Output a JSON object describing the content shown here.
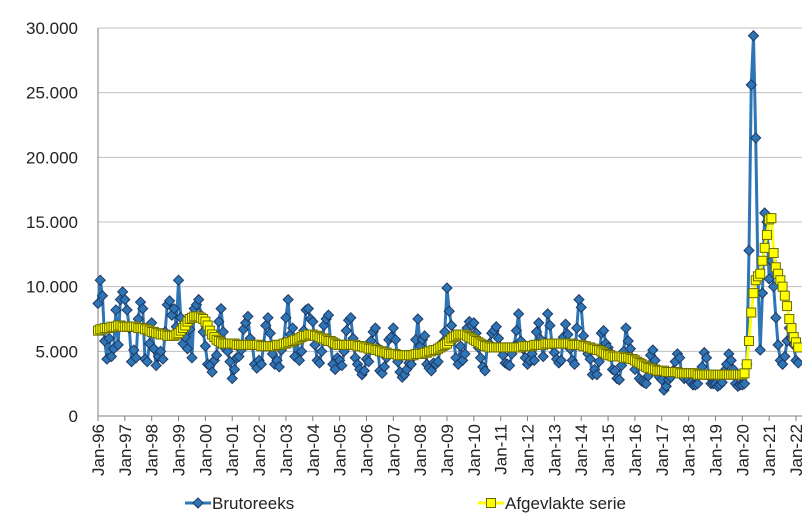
{
  "chart_data": {
    "type": "line",
    "categories": [
      "Jan-96",
      null,
      null,
      null,
      null,
      null,
      null,
      null,
      null,
      null,
      null,
      null,
      "Jan-97",
      null,
      null,
      null,
      null,
      null,
      null,
      null,
      null,
      null,
      null,
      null,
      "Jan-98",
      null,
      null,
      null,
      null,
      null,
      null,
      null,
      null,
      null,
      null,
      null,
      "Jan-99",
      null,
      null,
      null,
      null,
      null,
      null,
      null,
      null,
      null,
      null,
      null,
      "Jan-00",
      null,
      null,
      null,
      null,
      null,
      null,
      null,
      null,
      null,
      null,
      null,
      "Jan-01",
      null,
      null,
      null,
      null,
      null,
      null,
      null,
      null,
      null,
      null,
      null,
      "Jan-02",
      null,
      null,
      null,
      null,
      null,
      null,
      null,
      null,
      null,
      null,
      null,
      "Jan-03",
      null,
      null,
      null,
      null,
      null,
      null,
      null,
      null,
      null,
      null,
      null,
      "Jan-04",
      null,
      null,
      null,
      null,
      null,
      null,
      null,
      null,
      null,
      null,
      null,
      "Jan-05",
      null,
      null,
      null,
      null,
      null,
      null,
      null,
      null,
      null,
      null,
      null,
      "Jan-06",
      null,
      null,
      null,
      null,
      null,
      null,
      null,
      null,
      null,
      null,
      null,
      "Jan-07",
      null,
      null,
      null,
      null,
      null,
      null,
      null,
      null,
      null,
      null,
      null,
      "Jan-08",
      null,
      null,
      null,
      null,
      null,
      null,
      null,
      null,
      null,
      null,
      null,
      "Jan-09",
      null,
      null,
      null,
      null,
      null,
      null,
      null,
      null,
      null,
      null,
      null,
      "Jan-10",
      null,
      null,
      null,
      null,
      null,
      null,
      null,
      null,
      null,
      null,
      null,
      "Jan-11",
      null,
      null,
      null,
      null,
      null,
      null,
      null,
      null,
      null,
      null,
      null,
      "Jan-12",
      null,
      null,
      null,
      null,
      null,
      null,
      null,
      null,
      null,
      null,
      null,
      "Jan-13",
      null,
      null,
      null,
      null,
      null,
      null,
      null,
      null,
      null,
      null,
      null,
      "Jan-14",
      null,
      null,
      null,
      null,
      null,
      null,
      null,
      null,
      null,
      null,
      null,
      "Jan-15",
      null,
      null,
      null,
      null,
      null,
      null,
      null,
      null,
      null,
      null,
      null,
      "Jan-16",
      null,
      null,
      null,
      null,
      null,
      null,
      null,
      null,
      null,
      null,
      null,
      "Jan-17",
      null,
      null,
      null,
      null,
      null,
      null,
      null,
      null,
      null,
      null,
      null,
      "Jan-18",
      null,
      null,
      null,
      null,
      null,
      null,
      null,
      null,
      null,
      null,
      null,
      "Jan-19",
      null,
      null,
      null,
      null,
      null,
      null,
      null,
      null,
      null,
      null,
      null,
      "Jan-20",
      null,
      null,
      null,
      null,
      null,
      null,
      null,
      null,
      null,
      null,
      null,
      "Jan-21",
      null,
      null,
      null,
      null,
      null,
      null,
      null,
      null,
      null,
      null,
      null,
      "Jan-22",
      null
    ],
    "series": [
      {
        "name": "Brutoreeks",
        "color": "#2e75b6",
        "marker": "diamond",
        "values": [
          8700,
          10500,
          9300,
          5800,
          4400,
          6000,
          4600,
          5200,
          8200,
          5500,
          9000,
          9600,
          9000,
          8200,
          6800,
          4200,
          5100,
          4500,
          7500,
          8800,
          8300,
          4400,
          4200,
          5600,
          7200,
          5200,
          3900,
          4600,
          5000,
          4400,
          6500,
          8600,
          8900,
          7800,
          8300,
          6900,
          10500,
          7600,
          5600,
          6100,
          5200,
          6700,
          4500,
          8300,
          8600,
          9000,
          7800,
          6500,
          5400,
          4000,
          3900,
          3400,
          4300,
          4700,
          7300,
          8300,
          6500,
          5200,
          5000,
          4200,
          2900,
          3600,
          4500,
          4600,
          5100,
          6700,
          7200,
          7700,
          6000,
          5500,
          4000,
          3700,
          4300,
          4000,
          5500,
          7000,
          7600,
          6400,
          4800,
          4000,
          4300,
          3800,
          5100,
          5700,
          7600,
          9000,
          6300,
          6800,
          4600,
          5900,
          4300,
          5000,
          6600,
          8200,
          8300,
          7500,
          7300,
          5500,
          4300,
          4100,
          5000,
          7000,
          7500,
          7800,
          5600,
          4000,
          3600,
          4500,
          4300,
          3900,
          5000,
          6600,
          7400,
          7600,
          6000,
          4500,
          4000,
          3600,
          3200,
          3500,
          4400,
          4200,
          5800,
          6500,
          6800,
          5300,
          3500,
          3300,
          3800,
          4500,
          5900,
          6100,
          6800,
          5900,
          4200,
          3400,
          3000,
          3200,
          3600,
          4100,
          4000,
          4600,
          5900,
          7500,
          5400,
          5900,
          6200,
          4000,
          3700,
          3500,
          4100,
          4000,
          4200,
          5300,
          5700,
          6500,
          9900,
          8100,
          7000,
          5900,
          4500,
          4000,
          5400,
          4300,
          4800,
          6800,
          7300,
          7000,
          7200,
          6400,
          5300,
          4500,
          3800,
          3500,
          5400,
          5600,
          6400,
          6600,
          6900,
          6000,
          5200,
          4700,
          4100,
          4000,
          3900,
          4800,
          5400,
          6600,
          7900,
          5800,
          5200,
          4500,
          4000,
          4300,
          4800,
          4300,
          6500,
          7200,
          5900,
          4600,
          5700,
          7900,
          7000,
          5500,
          4900,
          4400,
          4100,
          4300,
          6100,
          7100,
          6300,
          5200,
          4300,
          4000,
          6800,
          9000,
          8400,
          6200,
          5400,
          4800,
          4400,
          3200,
          3600,
          3200,
          4200,
          6400,
          6600,
          5600,
          5300,
          4900,
          3600,
          3500,
          2900,
          2800,
          3900,
          5000,
          6800,
          5800,
          5200,
          4300,
          3600,
          4000,
          2900,
          2700,
          2600,
          2500,
          3100,
          4700,
          5100,
          4300,
          3300,
          3000,
          2800,
          2000,
          2300,
          2800,
          3000,
          3500,
          4200,
          4800,
          4500,
          3100,
          2900,
          3300,
          2800,
          2600,
          2400,
          2400,
          2500,
          3400,
          3800,
          4900,
          4500,
          3100,
          2500,
          2500,
          2500,
          2300,
          2400,
          2600,
          3500,
          4000,
          4800,
          4300,
          3600,
          2500,
          2300,
          2400,
          2400,
          2500,
          4000,
          12800,
          25600,
          29400,
          21500,
          10800,
          5100,
          9500,
          15700,
          15000,
          10600,
          12000,
          10000,
          7600,
          5500,
          4300,
          4000,
          4600,
          5800,
          6800,
          6000,
          5500,
          4300,
          4100
        ]
      },
      {
        "name": "Afgevlakte serie",
        "color": "#ffff00",
        "marker": "square",
        "values": [
          6600,
          6700,
          6700,
          6800,
          6800,
          6800,
          6900,
          6900,
          6900,
          7000,
          7000,
          6900,
          6900,
          6900,
          6900,
          6900,
          6900,
          6900,
          6800,
          6800,
          6800,
          6700,
          6700,
          6600,
          6500,
          6500,
          6400,
          6400,
          6300,
          6300,
          6300,
          6200,
          6200,
          6200,
          6200,
          6300,
          6400,
          6600,
          6800,
          7000,
          7300,
          7500,
          7600,
          7700,
          7700,
          7700,
          7600,
          7500,
          7300,
          7000,
          6600,
          6300,
          6100,
          5900,
          5800,
          5700,
          5600,
          5600,
          5600,
          5600,
          5600,
          5600,
          5500,
          5500,
          5500,
          5500,
          5500,
          5500,
          5500,
          5500,
          5500,
          5500,
          5500,
          5400,
          5400,
          5400,
          5400,
          5400,
          5400,
          5400,
          5500,
          5500,
          5500,
          5600,
          5600,
          5700,
          5700,
          5800,
          5900,
          5900,
          6000,
          6100,
          6200,
          6200,
          6300,
          6300,
          6300,
          6200,
          6200,
          6100,
          6000,
          6000,
          5900,
          5800,
          5800,
          5700,
          5600,
          5500,
          5500,
          5500,
          5500,
          5500,
          5500,
          5500,
          5500,
          5500,
          5400,
          5400,
          5400,
          5300,
          5300,
          5200,
          5200,
          5200,
          5100,
          5100,
          5000,
          5000,
          4900,
          4900,
          4800,
          4800,
          4800,
          4800,
          4700,
          4700,
          4700,
          4700,
          4700,
          4700,
          4700,
          4700,
          4800,
          4800,
          4800,
          4800,
          4900,
          4900,
          5000,
          5000,
          5100,
          5100,
          5200,
          5300,
          5400,
          5500,
          5600,
          5800,
          6000,
          6100,
          6200,
          6300,
          6300,
          6300,
          6300,
          6200,
          6100,
          6000,
          5900,
          5800,
          5700,
          5600,
          5500,
          5400,
          5400,
          5300,
          5300,
          5300,
          5300,
          5300,
          5300,
          5300,
          5300,
          5300,
          5300,
          5300,
          5300,
          5300,
          5300,
          5300,
          5400,
          5400,
          5400,
          5400,
          5400,
          5500,
          5500,
          5500,
          5500,
          5500,
          5600,
          5600,
          5600,
          5600,
          5600,
          5600,
          5600,
          5600,
          5600,
          5600,
          5600,
          5600,
          5500,
          5500,
          5500,
          5500,
          5500,
          5400,
          5400,
          5300,
          5300,
          5200,
          5200,
          5100,
          5100,
          5000,
          4900,
          4800,
          4700,
          4700,
          4600,
          4600,
          4600,
          4600,
          4600,
          4500,
          4500,
          4500,
          4400,
          4400,
          4300,
          4200,
          4100,
          4000,
          3900,
          3800,
          3700,
          3700,
          3600,
          3600,
          3500,
          3500,
          3500,
          3500,
          3400,
          3400,
          3400,
          3400,
          3400,
          3400,
          3300,
          3300,
          3300,
          3300,
          3300,
          3300,
          3300,
          3300,
          3200,
          3200,
          3200,
          3200,
          3200,
          3200,
          3200,
          3200,
          3200,
          3200,
          3200,
          3200,
          3200,
          3200,
          3200,
          3200,
          3200,
          3200,
          3200,
          3200,
          3200,
          3300,
          4000,
          5800,
          8000,
          9500,
          10500,
          10800,
          11000,
          12000,
          13000,
          14000,
          15200,
          15300,
          12600,
          11500,
          11000,
          10500,
          10000,
          9300,
          8500,
          7500,
          6800,
          6100,
          5700,
          5300
        ]
      }
    ],
    "ylim": [
      0,
      30000
    ],
    "yticks": [
      0,
      {
        "value": 5000,
        "label": "5.000"
      },
      {
        "value": 10000,
        "label": "10.000"
      },
      {
        "value": 15000,
        "label": "15.000"
      },
      {
        "value": 20000,
        "label": "20.000"
      },
      {
        "value": 25000,
        "label": "25.000"
      },
      {
        "value": 30000,
        "label": "30.000"
      }
    ],
    "grid": true,
    "legend": "bottom"
  }
}
